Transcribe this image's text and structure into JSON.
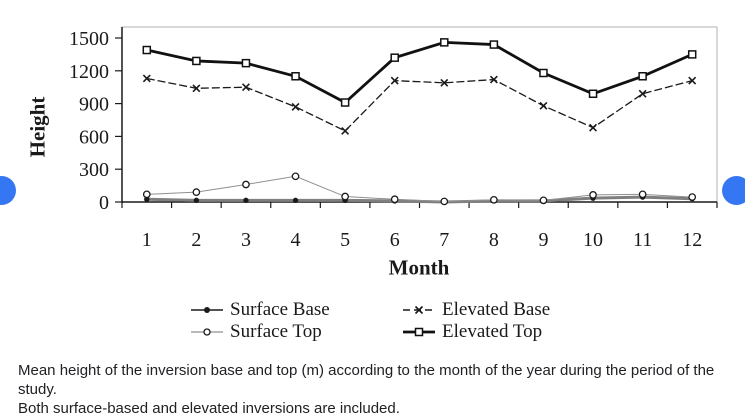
{
  "colors": {
    "axis": "#1a1a1a",
    "frame": "#b0b0b0",
    "text": "#1a1a1a",
    "caption_text": "#202124",
    "nav_button": "#3576f2",
    "surface_line_gray": "#8f8f8f",
    "surface_base_band_gray": "#7f7f7f"
  },
  "chart_data": {
    "type": "line",
    "title": "",
    "xlabel": "Month",
    "ylabel": "Height",
    "x": [
      1,
      2,
      3,
      4,
      5,
      6,
      7,
      8,
      9,
      10,
      11,
      12
    ],
    "yticks": [
      0,
      300,
      600,
      900,
      1200,
      1500
    ],
    "ylim": [
      0,
      1500
    ],
    "grid": false,
    "legend_position": "bottom",
    "series": [
      {
        "name": "Surface Base",
        "marker": "circle-filled",
        "color": "#1a1a1a",
        "line_color": "#7f7f7f",
        "line_width": 3,
        "dash": null,
        "values": [
          25,
          15,
          15,
          15,
          15,
          10,
          0,
          10,
          10,
          35,
          45,
          30
        ]
      },
      {
        "name": "Surface Top",
        "marker": "circle-open",
        "color": "#1a1a1a",
        "line_color": "#8f8f8f",
        "line_width": 1,
        "dash": null,
        "values": [
          70,
          90,
          160,
          235,
          50,
          25,
          5,
          20,
          15,
          65,
          70,
          45
        ]
      },
      {
        "name": "Elevated Base",
        "marker": "x",
        "color": "#1a1a1a",
        "line_color": "#1a1a1a",
        "line_width": 1.3,
        "dash": "8,3",
        "values": [
          1130,
          1040,
          1050,
          870,
          650,
          1110,
          1090,
          1120,
          880,
          680,
          990,
          1110
        ]
      },
      {
        "name": "Elevated Top",
        "marker": "square-open",
        "color": "#111111",
        "line_color": "#111111",
        "line_width": 2.8,
        "dash": null,
        "values": [
          1390,
          1290,
          1270,
          1150,
          910,
          1320,
          1460,
          1440,
          1180,
          990,
          1150,
          1350
        ]
      }
    ]
  },
  "caption": {
    "line1": "Mean height of the inversion base and top (m) according to the month of the year during the period of the study.",
    "line2": "Both surface-based and elevated inversions are included."
  }
}
